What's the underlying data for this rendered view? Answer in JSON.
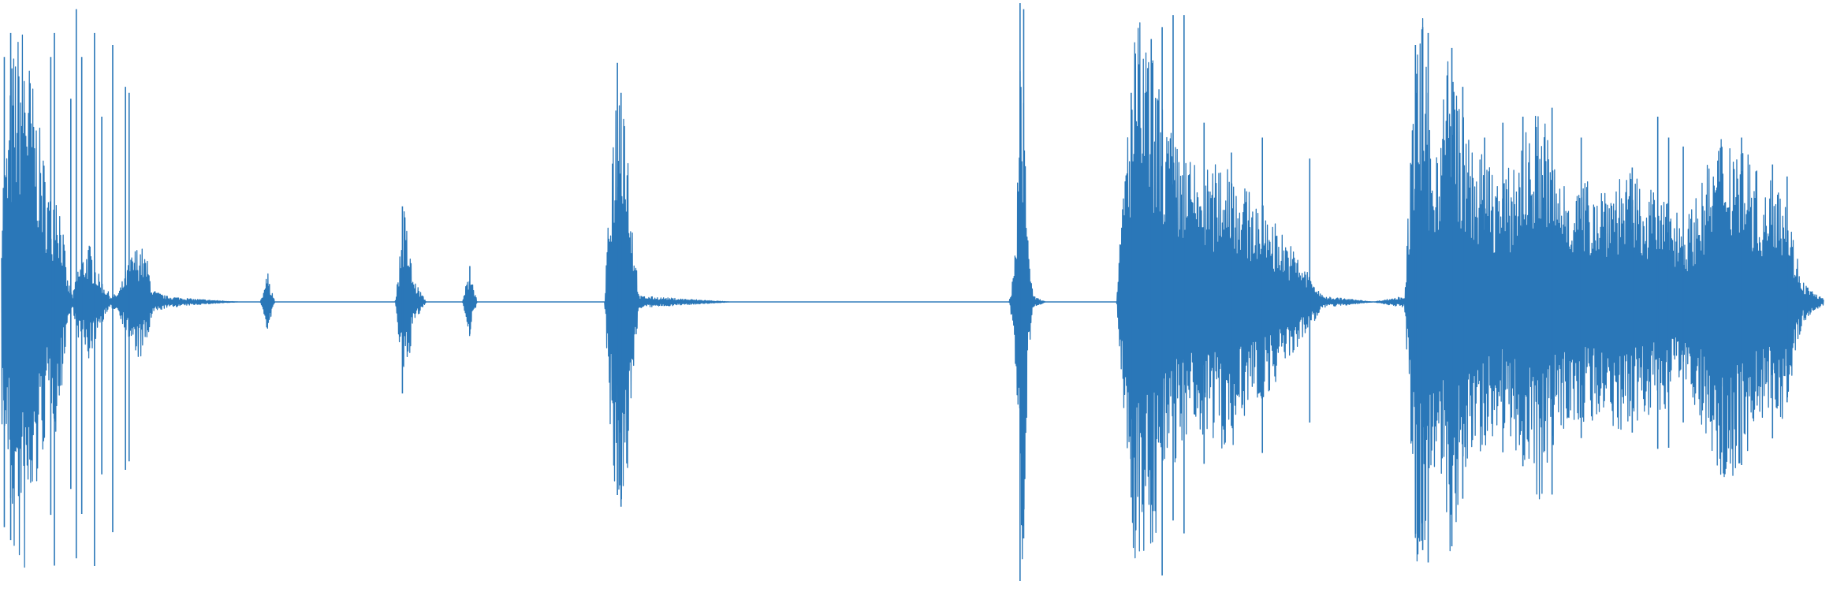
{
  "chart_data": {
    "type": "area",
    "title": "",
    "xlabel": "",
    "ylabel": "",
    "grid": false,
    "legend": "none",
    "color": "#2a77b8",
    "x_range": [
      0,
      100
    ],
    "y_range": [
      -1,
      1
    ],
    "envelope": {
      "t": [
        0,
        0.3,
        0.6,
        1.2,
        2.0,
        2.7,
        3.0,
        3.3,
        3.6,
        3.9,
        4.2,
        4.8,
        5.4,
        6.0,
        6.4,
        6.9,
        7.2,
        7.6,
        8.0,
        8.3,
        9.0,
        10.5,
        13.0,
        14.2,
        14.6,
        15.0,
        20.0,
        21.6,
        22.1,
        22.6,
        23.3,
        24.0,
        25.3,
        25.7,
        26.1,
        27.0,
        33.1,
        33.6,
        34.1,
        34.6,
        35.0,
        40.0,
        55.3,
        55.6,
        56.0,
        56.3,
        56.6,
        57.3,
        61.2,
        61.7,
        62.3,
        63.2,
        64.3,
        65.2,
        66.4,
        67.4,
        68.0,
        69.4,
        71.2,
        72.5,
        75.3,
        77.0,
        77.6,
        78.0,
        78.5,
        79.0,
        79.5,
        80.5,
        81.5,
        82.5,
        84.5,
        85.3,
        86.5,
        89.1,
        91.5,
        92.5,
        94.5,
        95.5,
        96.8,
        97.5,
        98.1,
        98.8,
        99.3,
        100.0
      ],
      "a": [
        0.42,
        0.55,
        0.85,
        0.96,
        0.62,
        0.35,
        0.45,
        0.3,
        0.08,
        0.02,
        0.12,
        0.2,
        0.08,
        0.02,
        0.03,
        0.12,
        0.17,
        0.2,
        0.14,
        0.04,
        0.02,
        0.01,
        0.0,
        0.0,
        0.1,
        0.0,
        0.0,
        0.0,
        0.32,
        0.08,
        0.0,
        0.0,
        0.0,
        0.12,
        0.0,
        0.0,
        0.0,
        0.68,
        0.88,
        0.3,
        0.02,
        0.0,
        0.0,
        0.12,
        1.0,
        0.3,
        0.02,
        0.0,
        0.0,
        0.55,
        0.98,
        0.82,
        0.55,
        0.48,
        0.45,
        0.52,
        0.4,
        0.32,
        0.15,
        0.02,
        0.0,
        0.02,
        0.85,
        0.98,
        0.5,
        0.7,
        0.88,
        0.55,
        0.48,
        0.42,
        0.68,
        0.45,
        0.4,
        0.44,
        0.35,
        0.28,
        0.6,
        0.58,
        0.36,
        0.52,
        0.3,
        0.08,
        0.04,
        0.01
      ]
    },
    "peaks": [
      {
        "t": 0.15,
        "a": 0.82
      },
      {
        "t": 0.5,
        "a": 0.9
      },
      {
        "t": 2.7,
        "a": 0.82
      },
      {
        "t": 2.9,
        "a": 0.9
      },
      {
        "t": 3.8,
        "a": 0.68
      },
      {
        "t": 4.1,
        "a": 0.98
      },
      {
        "t": 4.4,
        "a": 0.82
      },
      {
        "t": 5.1,
        "a": 0.9
      },
      {
        "t": 5.5,
        "a": 0.62
      },
      {
        "t": 6.1,
        "a": 0.86
      },
      {
        "t": 6.8,
        "a": 0.72
      },
      {
        "t": 7.0,
        "a": 0.7
      },
      {
        "t": 14.7,
        "a": 0.06
      },
      {
        "t": 22.0,
        "a": 0.32
      },
      {
        "t": 25.7,
        "a": 0.12
      },
      {
        "t": 33.8,
        "a": 0.8
      },
      {
        "t": 34.0,
        "a": 0.7
      },
      {
        "t": 55.9,
        "a": 1.0
      },
      {
        "t": 56.1,
        "a": 0.98
      },
      {
        "t": 62.0,
        "a": 0.7
      },
      {
        "t": 63.1,
        "a": 0.88
      },
      {
        "t": 63.7,
        "a": 0.92
      },
      {
        "t": 64.3,
        "a": 0.96
      },
      {
        "t": 64.9,
        "a": 0.96
      },
      {
        "t": 66.0,
        "a": 0.6
      },
      {
        "t": 67.5,
        "a": 0.5
      },
      {
        "t": 69.2,
        "a": 0.55
      },
      {
        "t": 71.8,
        "a": 0.48
      },
      {
        "t": 77.6,
        "a": 0.86
      },
      {
        "t": 78.0,
        "a": 0.92
      },
      {
        "t": 78.3,
        "a": 0.9
      },
      {
        "t": 79.6,
        "a": 0.85
      },
      {
        "t": 80.2,
        "a": 0.72
      },
      {
        "t": 81.4,
        "a": 0.55
      },
      {
        "t": 82.4,
        "a": 0.6
      },
      {
        "t": 83.5,
        "a": 0.62
      },
      {
        "t": 85.1,
        "a": 0.65
      },
      {
        "t": 86.7,
        "a": 0.55
      },
      {
        "t": 89.5,
        "a": 0.45
      },
      {
        "t": 90.9,
        "a": 0.62
      },
      {
        "t": 91.5,
        "a": 0.55
      },
      {
        "t": 92.3,
        "a": 0.52
      },
      {
        "t": 94.4,
        "a": 0.52
      },
      {
        "t": 95.5,
        "a": 0.55
      },
      {
        "t": 97.2,
        "a": 0.46
      },
      {
        "t": 98.0,
        "a": 0.42
      }
    ],
    "seed": 7
  }
}
